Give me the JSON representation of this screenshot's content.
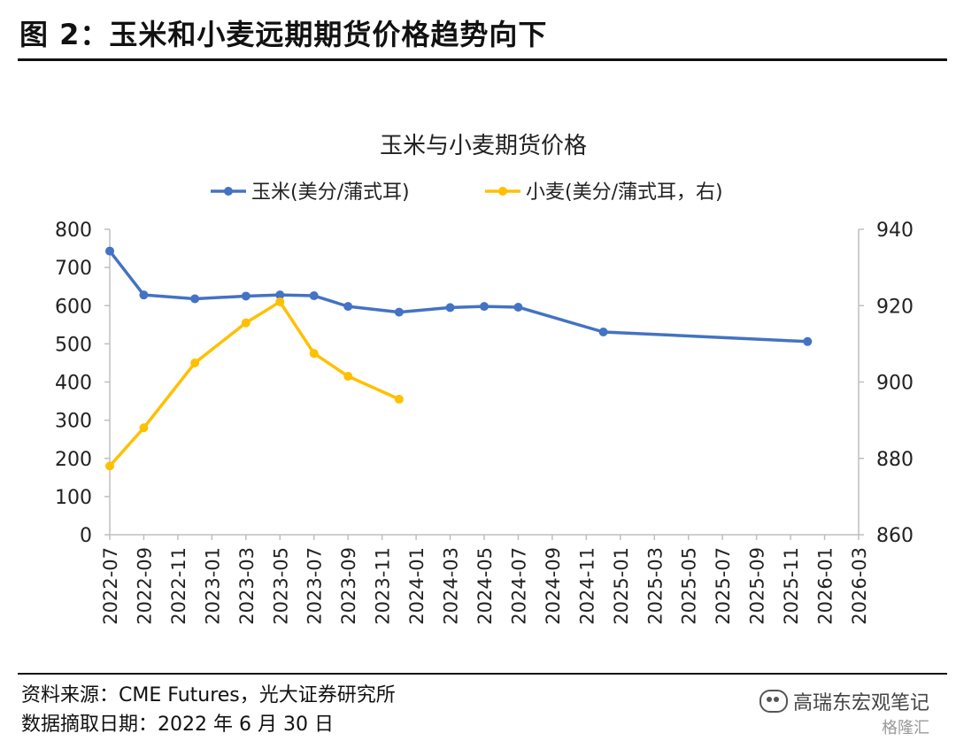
{
  "figure": {
    "title": "图 2：玉米和小麦远期期货价格趋势向下",
    "source": "资料来源：CME Futures，光大证券研究所",
    "date": "数据摘取日期：2022 年 6 月 30 日",
    "watermark": "高瑞东宏观笔记",
    "watermark_small": "格隆汇"
  },
  "chart_data": {
    "type": "line",
    "title": "玉米与小麦期货价格",
    "x_ticks": [
      "2022-07",
      "2022-09",
      "2022-11",
      "2023-01",
      "2023-03",
      "2023-05",
      "2023-07",
      "2023-09",
      "2023-11",
      "2024-01",
      "2024-03",
      "2024-05",
      "2024-07",
      "2024-09",
      "2024-11",
      "2025-01",
      "2025-03",
      "2025-05",
      "2025-07",
      "2025-09",
      "2025-11",
      "2026-01",
      "2026-03"
    ],
    "ylim_left": [
      0,
      800
    ],
    "yticks_left": [
      0,
      100,
      200,
      300,
      400,
      500,
      600,
      700,
      800
    ],
    "ylim_right": [
      860,
      940
    ],
    "yticks_right": [
      860,
      880,
      900,
      920,
      940
    ],
    "grid": false,
    "legend_position": "top-center",
    "series": [
      {
        "name": "玉米(美分/蒲式耳)",
        "axis": "left",
        "color": "#4472C4",
        "points": [
          {
            "x": "2022-07",
            "y": 743
          },
          {
            "x": "2022-09",
            "y": 628
          },
          {
            "x": "2022-12",
            "y": 618
          },
          {
            "x": "2023-03",
            "y": 625
          },
          {
            "x": "2023-05",
            "y": 628
          },
          {
            "x": "2023-07",
            "y": 626
          },
          {
            "x": "2023-09",
            "y": 598
          },
          {
            "x": "2023-12",
            "y": 583
          },
          {
            "x": "2024-03",
            "y": 595
          },
          {
            "x": "2024-05",
            "y": 598
          },
          {
            "x": "2024-07",
            "y": 596
          },
          {
            "x": "2024-12",
            "y": 531
          },
          {
            "x": "2025-12",
            "y": 506
          }
        ]
      },
      {
        "name": "小麦(美分/蒲式耳，右)",
        "axis": "right",
        "color": "#FFC000",
        "points": [
          {
            "x": "2022-07",
            "y": 878
          },
          {
            "x": "2022-09",
            "y": 888
          },
          {
            "x": "2022-12",
            "y": 905
          },
          {
            "x": "2023-03",
            "y": 915.5
          },
          {
            "x": "2023-05",
            "y": 921
          },
          {
            "x": "2023-07",
            "y": 907.5
          },
          {
            "x": "2023-09",
            "y": 901.5
          },
          {
            "x": "2023-12",
            "y": 895.5
          }
        ]
      }
    ]
  }
}
